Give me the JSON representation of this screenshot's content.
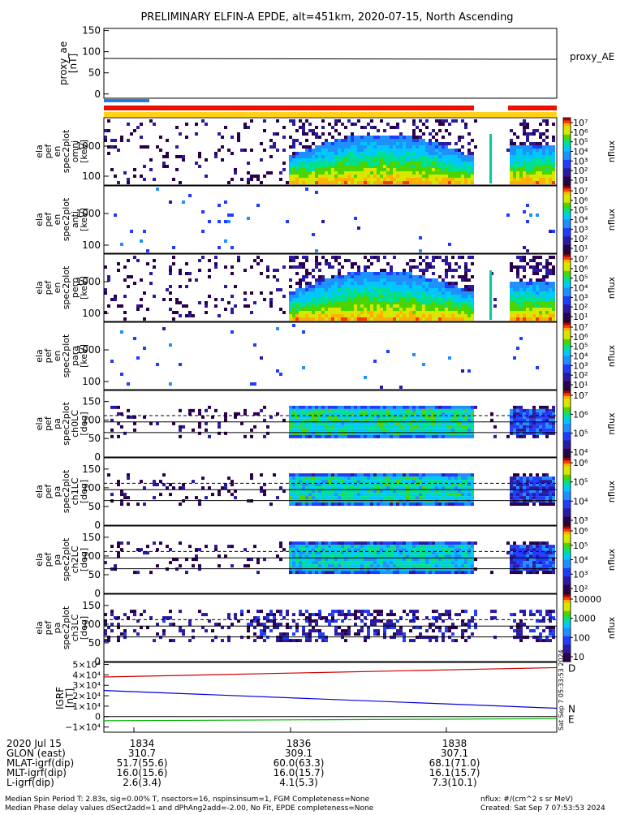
{
  "title": "PRELIMINARY ELFIN-A EPDE, alt=451km, 2020-07-15, North Ascending",
  "chart_data": [
    {
      "type": "line",
      "panel": "proxy_ae",
      "ylabel": "proxy_ae [nT]",
      "ylabel_lines": [
        "proxy_ae",
        "[nT]"
      ],
      "yticks": [
        "150",
        "100",
        "50",
        "0"
      ],
      "ylim": [
        -10,
        155
      ],
      "legend": "proxy_AE",
      "x": [
        0,
        1
      ],
      "values": [
        84,
        82
      ]
    },
    {
      "type": "heatmap",
      "panel": "energy-omni",
      "ylabel_lines": [
        "ela",
        "pef",
        "en",
        "spec2plot",
        "omni",
        "[keV]"
      ],
      "yticks": [
        "1000",
        "100"
      ],
      "colorbar": {
        "ticks": [
          "10⁷",
          "10⁶",
          "10⁵",
          "10⁴",
          "10³",
          "10²",
          "10¹"
        ],
        "label": "nflux"
      }
    },
    {
      "type": "heatmap",
      "panel": "energy-anti",
      "ylabel_lines": [
        "ela",
        "pef",
        "en",
        "spec2plot",
        "anti",
        "[keV]"
      ],
      "yticks": [
        "1000",
        "100"
      ],
      "colorbar": {
        "ticks": [
          "10⁷",
          "10⁶",
          "10⁵",
          "10⁴",
          "10³",
          "10²",
          "10¹"
        ],
        "label": "nflux"
      }
    },
    {
      "type": "heatmap",
      "panel": "energy-perp",
      "ylabel_lines": [
        "ela",
        "pef",
        "en",
        "spec2plot",
        "perp",
        "[keV]"
      ],
      "yticks": [
        "1000",
        "100"
      ],
      "colorbar": {
        "ticks": [
          "10⁷",
          "10⁶",
          "10⁵",
          "10⁴",
          "10³",
          "10²",
          "10¹"
        ],
        "label": "nflux"
      }
    },
    {
      "type": "heatmap",
      "panel": "energy-para",
      "ylabel_lines": [
        "ela",
        "pef",
        "en",
        "spec2plot",
        "para",
        "[keV]"
      ],
      "yticks": [
        "1000",
        "100"
      ],
      "colorbar": {
        "ticks": [
          "10⁷",
          "10⁶",
          "10⁵",
          "10⁴",
          "10³",
          "10²",
          "10¹"
        ],
        "label": "nflux"
      }
    },
    {
      "type": "heatmap",
      "panel": "pitch-ch0LC",
      "ylabel_lines": [
        "ela",
        "pef",
        "pa",
        "spec2plot",
        "ch0LC",
        "[deg]"
      ],
      "yticks": [
        "150",
        "100",
        "50",
        "0"
      ],
      "colorbar": {
        "ticks": [
          "10⁷",
          "10⁶",
          "10⁵",
          "10⁴"
        ],
        "label": "nflux"
      }
    },
    {
      "type": "heatmap",
      "panel": "pitch-ch1LC",
      "ylabel_lines": [
        "ela",
        "pef",
        "pa",
        "spec2plot",
        "ch1LC",
        "[deg]"
      ],
      "yticks": [
        "150",
        "100",
        "50",
        "0"
      ],
      "colorbar": {
        "ticks": [
          "10⁶",
          "10⁵",
          "10⁴",
          "10³"
        ],
        "label": "nflux"
      }
    },
    {
      "type": "heatmap",
      "panel": "pitch-ch2LC",
      "ylabel_lines": [
        "ela",
        "pef",
        "pa",
        "spec2plot",
        "ch2LC",
        "[deg]"
      ],
      "yticks": [
        "150",
        "100",
        "50",
        "0"
      ],
      "colorbar": {
        "ticks": [
          "10⁶",
          "10⁵",
          "10⁴",
          "10³",
          "10²"
        ],
        "label": "nflux"
      }
    },
    {
      "type": "heatmap",
      "panel": "pitch-ch3LC",
      "ylabel_lines": [
        "ela",
        "pef",
        "pa",
        "spec2plot",
        "ch3LC",
        "[deg]"
      ],
      "yticks": [
        "150",
        "100",
        "50",
        "0"
      ],
      "colorbar": {
        "ticks": [
          "10000",
          "1000",
          "100",
          "10"
        ],
        "label": "nflux"
      }
    },
    {
      "type": "line",
      "panel": "igrf",
      "ylabel_lines": [
        "IGRF",
        "[nT]"
      ],
      "yticks": [
        "5×10⁴",
        "4×10⁴",
        "3×10⁴",
        "2×10⁴",
        "1×10⁴",
        "0",
        "−1×10⁴"
      ],
      "ylim": [
        -15000,
        52000
      ],
      "series": [
        {
          "name": "D",
          "color": "#cc0000",
          "values": [
            38000,
            47000
          ]
        },
        {
          "name": "N",
          "color": "#0000dd",
          "values": [
            25000,
            8000
          ]
        },
        {
          "name": "E",
          "color": "#00b000",
          "values": [
            -4000,
            -2000
          ]
        }
      ],
      "side_stamp": "Sat Sep  7 05:33:53 2024"
    }
  ],
  "footer": {
    "rows": [
      {
        "label": "2020 Jul 15",
        "values": [
          "1834",
          "1836",
          "1838"
        ]
      },
      {
        "label": "GLON (east)",
        "values": [
          "310.7",
          "309.1",
          "307.1"
        ]
      },
      {
        "label": "MLAT-igrf(dip)",
        "values": [
          "51.7(55.6)",
          "60.0(63.3)",
          "68.1(71.0)"
        ]
      },
      {
        "label": "MLT-igrf(dip)",
        "values": [
          "16.0(15.6)",
          "16.0(15.7)",
          "16.1(15.7)"
        ]
      },
      {
        "label": "L-igrf(dip)",
        "values": [
          "2.6(3.4)",
          "4.1(5.3)",
          "7.3(10.1)"
        ]
      }
    ],
    "note1": "Median Spin Period T: 2.83s, sig=0.00% T, nsectors=16, nspinsinsum=1, FGM Completeness=None",
    "note2": "Median Phase delay values dSect2add=1 and dPhAng2add=-2.00, No Fit, EPDE completeness=None",
    "units": "nflux: #/(cm^2 s sr MeV)",
    "created": "Created: Sat Sep  7 07:53:53 2024"
  },
  "colors": {
    "bar_blue": "#1e7ee6",
    "bar_red": "#ee1100",
    "bar_yellow": "#ffd21a"
  }
}
